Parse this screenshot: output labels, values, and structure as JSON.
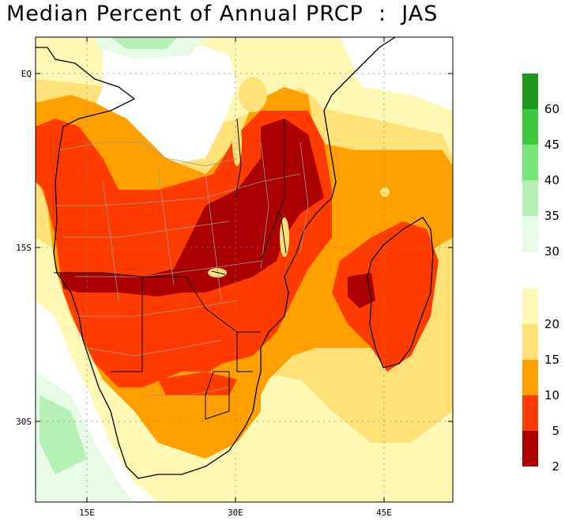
{
  "title": "Median Percent of Annual PRCP  :  JAS",
  "axes": {
    "lat_labels": [
      "EQ",
      "15S",
      "30S"
    ],
    "lon_labels": [
      "15E",
      "30E",
      "45E"
    ]
  },
  "legend": {
    "wet_classes": [
      {
        "label": "60",
        "color": "#1e9b1e"
      },
      {
        "label": "45",
        "color": "#3cc83c"
      },
      {
        "label": "40",
        "color": "#78e678"
      },
      {
        "label": "35",
        "color": "#b4f0b4"
      },
      {
        "label": "30",
        "color": "#e6fae6"
      }
    ],
    "dry_classes": [
      {
        "label": "20",
        "color": "#fff8b4"
      },
      {
        "label": "15",
        "color": "#ffe178"
      },
      {
        "label": "10",
        "color": "#ffa000"
      },
      {
        "label": "5",
        "color": "#ff3c00"
      },
      {
        "label": "2",
        "color": "#aa0000"
      }
    ]
  },
  "colors": {
    "lt2": "#aa0000",
    "c2_5": "#ff3c00",
    "c5_10": "#ffa000",
    "c10_15": "#ffe178",
    "c15_20": "#fff8b4",
    "c30_35": "#e6fae6",
    "c35_40": "#b4f0b4",
    "c40_45": "#78e678",
    "white": "#ffffff"
  }
}
